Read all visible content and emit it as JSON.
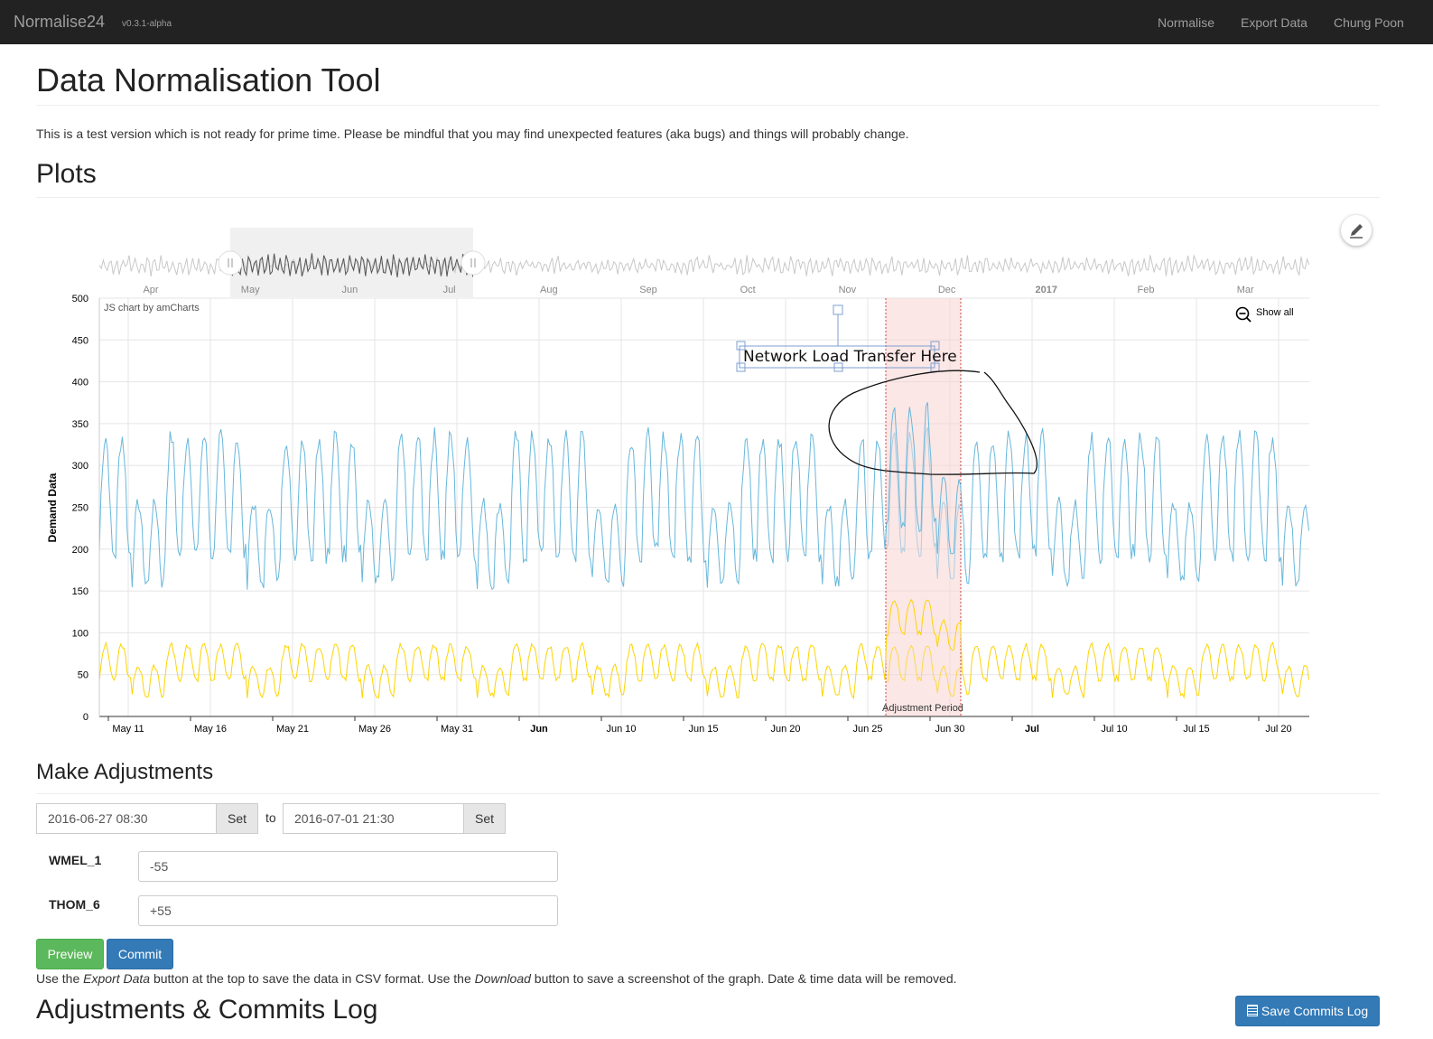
{
  "navbar": {
    "brand": "Normalise24",
    "version": "v0.3.1-alpha",
    "links": [
      "Normalise",
      "Export Data",
      "Chung Poon"
    ]
  },
  "page": {
    "title": "Data Normalisation Tool",
    "notice": "This is a test version which is not ready for prime time. Please be mindful that you may find unexpected features (aka bugs) and things will probably change."
  },
  "plots": {
    "heading": "Plots",
    "pencil_icon": "pencil-icon",
    "credit": "JS chart by amCharts",
    "show_all": "Show all",
    "zoom_icon": "zoom-out-icon",
    "annotation": "Network Load Transfer Here",
    "guide_label": "Adjustment Period"
  },
  "chart_data": {
    "type": "line",
    "ylabel": "Demand Data",
    "ylim": [
      0,
      500
    ],
    "y_ticks": [
      "0",
      "50",
      "100",
      "150",
      "200",
      "250",
      "300",
      "350",
      "400",
      "450",
      "500"
    ],
    "x_ticks": [
      {
        "label": "May 11",
        "bold": false
      },
      {
        "label": "May 16",
        "bold": false
      },
      {
        "label": "May 21",
        "bold": false
      },
      {
        "label": "May 26",
        "bold": false
      },
      {
        "label": "May 31",
        "bold": false
      },
      {
        "label": "Jun",
        "bold": true
      },
      {
        "label": "Jun 10",
        "bold": false
      },
      {
        "label": "Jun 15",
        "bold": false
      },
      {
        "label": "Jun 20",
        "bold": false
      },
      {
        "label": "Jun 25",
        "bold": false
      },
      {
        "label": "Jun 30",
        "bold": false
      },
      {
        "label": "Jul",
        "bold": true
      },
      {
        "label": "Jul 10",
        "bold": false
      },
      {
        "label": "Jul 15",
        "bold": false
      },
      {
        "label": "Jul 20",
        "bold": false
      }
    ],
    "scrollbar_ticks": [
      {
        "label": "Apr",
        "bold": false
      },
      {
        "label": "May",
        "bold": false
      },
      {
        "label": "Jun",
        "bold": false
      },
      {
        "label": "Jul",
        "bold": false
      },
      {
        "label": "Aug",
        "bold": false
      },
      {
        "label": "Sep",
        "bold": false
      },
      {
        "label": "Oct",
        "bold": false
      },
      {
        "label": "Nov",
        "bold": false
      },
      {
        "label": "Dec",
        "bold": false
      },
      {
        "label": "2017",
        "bold": true
      },
      {
        "label": "Feb",
        "bold": false
      },
      {
        "label": "Mar",
        "bold": false
      }
    ],
    "series": [
      {
        "color": "#67b7dc",
        "daily_min": 195,
        "daily_max": 335,
        "weekend_min": 160,
        "weekend_max": 255
      },
      {
        "color": "#fdd400",
        "daily_min": 45,
        "daily_max": 85,
        "weekend_min": 25,
        "weekend_max": 60
      }
    ],
    "adjustment_period": {
      "from": "2016-06-27 08:30",
      "to": "2016-07-01 21:30",
      "color": "#f7d4d2"
    }
  },
  "adjustments": {
    "heading": "Make Adjustments",
    "start_value": "2016-06-27 08:30",
    "end_value": "2016-07-01 21:30",
    "set_label": "Set",
    "to_label": "to",
    "rows": [
      {
        "label": "WMEL_1",
        "value": "-55"
      },
      {
        "label": "THOM_6",
        "value": "+55"
      }
    ],
    "preview_label": "Preview",
    "commit_label": "Commit",
    "help_1": "Use the ",
    "help_em_1": "Export Data",
    "help_2": " button at the top to save the data in CSV format. Use the ",
    "help_em_2": "Download",
    "help_3": " button to save a screenshot of the graph. Date & time data will be removed."
  },
  "log": {
    "heading": "Adjustments & Commits Log",
    "save_label": "Save Commits Log",
    "save_icon": "list-icon"
  }
}
